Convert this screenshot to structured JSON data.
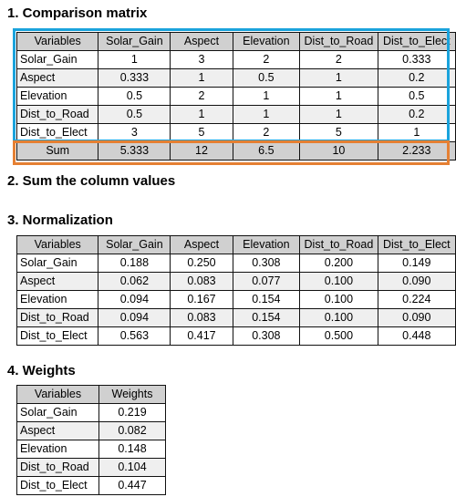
{
  "headings": {
    "h1": "1. Comparison matrix",
    "h2": "2. Sum the column values",
    "h3": "3. Normalization",
    "h4": "4. Weights"
  },
  "comparison": {
    "columns": [
      "Variables",
      "Solar_Gain",
      "Aspect",
      "Elevation",
      "Dist_to_Road",
      "Dist_to_Elect"
    ],
    "rows": [
      [
        "Solar_Gain",
        "1",
        "3",
        "2",
        "2",
        "0.333"
      ],
      [
        "Aspect",
        "0.333",
        "1",
        "0.5",
        "1",
        "0.2"
      ],
      [
        "Elevation",
        "0.5",
        "2",
        "1",
        "1",
        "0.5"
      ],
      [
        "Dist_to_Road",
        "0.5",
        "1",
        "1",
        "1",
        "0.2"
      ],
      [
        "Dist_to_Elect",
        "3",
        "5",
        "2",
        "5",
        "1"
      ]
    ],
    "sum": [
      "Sum",
      "5.333",
      "12",
      "6.5",
      "10",
      "2.233"
    ]
  },
  "normalization": {
    "columns": [
      "Variables",
      "Solar_Gain",
      "Aspect",
      "Elevation",
      "Dist_to_Road",
      "Dist_to_Elect"
    ],
    "rows": [
      [
        "Solar_Gain",
        "0.188",
        "0.250",
        "0.308",
        "0.200",
        "0.149"
      ],
      [
        "Aspect",
        "0.062",
        "0.083",
        "0.077",
        "0.100",
        "0.090"
      ],
      [
        "Elevation",
        "0.094",
        "0.167",
        "0.154",
        "0.100",
        "0.224"
      ],
      [
        "Dist_to_Road",
        "0.094",
        "0.083",
        "0.154",
        "0.100",
        "0.090"
      ],
      [
        "Dist_to_Elect",
        "0.563",
        "0.417",
        "0.308",
        "0.500",
        "0.448"
      ]
    ]
  },
  "weights": {
    "columns": [
      "Variables",
      "Weights"
    ],
    "rows": [
      [
        "Solar_Gain",
        "0.219"
      ],
      [
        "Aspect",
        "0.082"
      ],
      [
        "Elevation",
        "0.148"
      ],
      [
        "Dist_to_Road",
        "0.104"
      ],
      [
        "Dist_to_Elect",
        "0.447"
      ]
    ]
  },
  "colors": {
    "matrix_outline": "#1aa3dc",
    "sum_outline": "#e58033",
    "header_fill": "#d0d0d0",
    "alt_row_fill": "#efefef"
  }
}
